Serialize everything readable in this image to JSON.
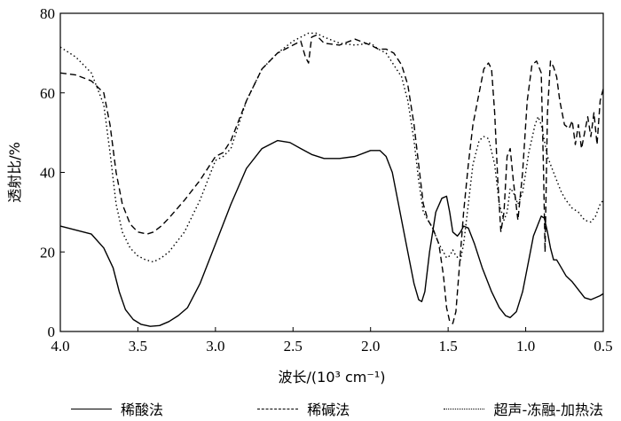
{
  "chart_data": {
    "type": "line",
    "title": "",
    "xlabel": "波长/(10³ cm⁻¹)",
    "ylabel": "透射比/%",
    "xlim": [
      4.0,
      0.5
    ],
    "ylim": [
      0,
      80
    ],
    "x_reversed": true,
    "grid": false,
    "legend_position": "bottom",
    "xticks": [
      "4.0",
      "3.5",
      "3.0",
      "2.5",
      "2.0",
      "1.5",
      "1.0",
      "0.5"
    ],
    "yticks": [
      "0",
      "20",
      "40",
      "60",
      "80"
    ],
    "series": [
      {
        "name": "稀酸法",
        "style": "solid",
        "color": "#000000",
        "x": [
          4.0,
          3.9,
          3.8,
          3.72,
          3.66,
          3.62,
          3.58,
          3.53,
          3.48,
          3.42,
          3.36,
          3.3,
          3.24,
          3.18,
          3.1,
          3.0,
          2.9,
          2.8,
          2.7,
          2.6,
          2.52,
          2.45,
          2.38,
          2.3,
          2.2,
          2.1,
          2.0,
          1.94,
          1.9,
          1.86,
          1.82,
          1.77,
          1.72,
          1.69,
          1.67,
          1.65,
          1.62,
          1.58,
          1.54,
          1.51,
          1.49,
          1.47,
          1.44,
          1.42,
          1.4,
          1.37,
          1.33,
          1.28,
          1.22,
          1.17,
          1.13,
          1.1,
          1.06,
          1.02,
          0.98,
          0.95,
          0.92,
          0.9,
          0.88,
          0.86,
          0.84,
          0.82,
          0.8,
          0.77,
          0.74,
          0.7,
          0.66,
          0.62,
          0.58,
          0.55,
          0.52,
          0.5
        ],
        "y": [
          26.5,
          25.5,
          24.5,
          21,
          16,
          10,
          5.5,
          3,
          1.8,
          1.3,
          1.5,
          2.5,
          4,
          6,
          12,
          22,
          32,
          41,
          46,
          48,
          47.5,
          46,
          44.5,
          43.5,
          43.5,
          44,
          45.5,
          45.5,
          44,
          40,
          32,
          22,
          12,
          8,
          7.5,
          10,
          20,
          30,
          33.5,
          34,
          30,
          25,
          24,
          25,
          26.5,
          26,
          22,
          16,
          10,
          6,
          4,
          3.5,
          5,
          10,
          18,
          24,
          27,
          29,
          28.5,
          25,
          21,
          18,
          18,
          16,
          14,
          12.5,
          10.5,
          8.5,
          8,
          8.5,
          9,
          9.5
        ]
      },
      {
        "name": "稀碱法",
        "style": "dashed",
        "color": "#000000",
        "x": [
          4.0,
          3.9,
          3.8,
          3.72,
          3.68,
          3.64,
          3.6,
          3.55,
          3.5,
          3.44,
          3.4,
          3.35,
          3.3,
          3.2,
          3.1,
          3.0,
          2.95,
          2.9,
          2.8,
          2.7,
          2.6,
          2.5,
          2.45,
          2.42,
          2.4,
          2.38,
          2.35,
          2.3,
          2.2,
          2.1,
          2.0,
          1.95,
          1.9,
          1.85,
          1.8,
          1.76,
          1.72,
          1.69,
          1.66,
          1.63,
          1.6,
          1.56,
          1.53,
          1.51,
          1.49,
          1.47,
          1.45,
          1.43,
          1.4,
          1.37,
          1.34,
          1.3,
          1.27,
          1.24,
          1.22,
          1.2,
          1.18,
          1.16,
          1.14,
          1.12,
          1.1,
          1.08,
          1.05,
          1.02,
          0.99,
          0.96,
          0.93,
          0.9,
          0.885,
          0.875,
          0.86,
          0.84,
          0.82,
          0.8,
          0.78,
          0.75,
          0.72,
          0.7,
          0.68,
          0.66,
          0.64,
          0.62,
          0.6,
          0.58,
          0.56,
          0.54,
          0.52,
          0.5
        ],
        "y": [
          65,
          64.5,
          63,
          60,
          52,
          40,
          32,
          27,
          25,
          24.5,
          25,
          26.5,
          28.5,
          33,
          38,
          44,
          45,
          48,
          58,
          66,
          70,
          72,
          73,
          69,
          67.5,
          74,
          74.5,
          72.5,
          72,
          73.5,
          72,
          71,
          71,
          70,
          67,
          62,
          52,
          42,
          32,
          28,
          26,
          22,
          14,
          6,
          2.5,
          2,
          5,
          15,
          30,
          42,
          52,
          60,
          66,
          67.5,
          66,
          55,
          38,
          25,
          30,
          44,
          46,
          38,
          28,
          40,
          58,
          67,
          68,
          65,
          40,
          20,
          55,
          68,
          66.5,
          64,
          58,
          52,
          51,
          53,
          47,
          52,
          46,
          50,
          54,
          49,
          55,
          47,
          58,
          61
        ]
      },
      {
        "name": "超声-冻融-加热法",
        "style": "dotted",
        "color": "#000000",
        "x": [
          4.0,
          3.9,
          3.8,
          3.72,
          3.68,
          3.64,
          3.6,
          3.55,
          3.5,
          3.45,
          3.4,
          3.35,
          3.3,
          3.2,
          3.1,
          3.0,
          2.95,
          2.9,
          2.8,
          2.7,
          2.6,
          2.5,
          2.4,
          2.35,
          2.3,
          2.2,
          2.1,
          2.0,
          1.95,
          1.9,
          1.85,
          1.8,
          1.76,
          1.72,
          1.69,
          1.66,
          1.63,
          1.6,
          1.56,
          1.53,
          1.51,
          1.49,
          1.47,
          1.45,
          1.42,
          1.4,
          1.37,
          1.34,
          1.3,
          1.27,
          1.24,
          1.2,
          1.17,
          1.14,
          1.12,
          1.1,
          1.08,
          1.05,
          1.02,
          0.98,
          0.94,
          0.92,
          0.9,
          0.88,
          0.86,
          0.84,
          0.82,
          0.8,
          0.77,
          0.74,
          0.7,
          0.66,
          0.62,
          0.58,
          0.55,
          0.52,
          0.5
        ],
        "y": [
          71.5,
          69,
          65,
          57,
          45,
          32,
          25,
          21,
          19,
          18,
          17.5,
          18.5,
          20,
          25,
          33,
          43,
          44,
          46,
          58,
          66,
          70,
          73,
          75,
          75,
          74,
          72.5,
          72,
          72.5,
          71,
          70,
          67,
          64,
          58,
          48,
          38,
          30,
          28,
          26,
          22,
          20,
          18.5,
          19,
          20.5,
          19,
          18,
          22,
          32,
          42,
          48,
          49,
          48.5,
          42,
          32,
          28,
          30,
          36,
          35,
          32,
          35,
          45,
          52,
          54,
          52,
          48,
          44,
          42,
          40,
          38,
          35,
          33,
          31,
          30,
          28,
          27.5,
          29,
          32,
          33
        ]
      }
    ]
  },
  "legend": {
    "items": [
      {
        "label": "稀酸法",
        "style": "solid"
      },
      {
        "label": "稀碱法",
        "style": "dashed"
      },
      {
        "label": "超声-冻融-加热法",
        "style": "dotted"
      }
    ]
  }
}
